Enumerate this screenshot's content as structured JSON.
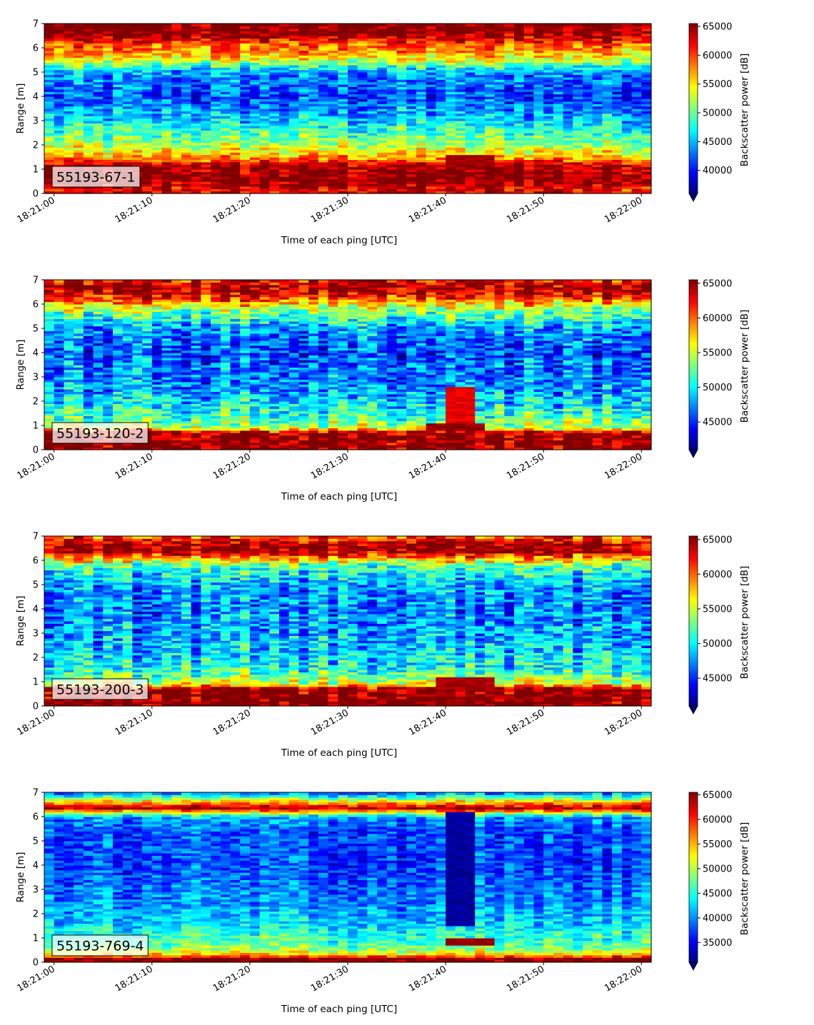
{
  "figure": {
    "colormap": "jet"
  },
  "chart_data": [
    {
      "type": "heatmap",
      "label": "55193-67-1",
      "xlabel": "Time of each ping [UTC]",
      "ylabel": "Range [m]",
      "xticks": [
        "18:21:00",
        "18:21:10",
        "18:21:20",
        "18:21:30",
        "18:21:40",
        "18:21:50",
        "18:22:00"
      ],
      "yticks": [
        0,
        1,
        2,
        3,
        4,
        5,
        6,
        7
      ],
      "xlim": [
        "18:20:59",
        "18:22:00"
      ],
      "ylim": [
        0,
        7
      ],
      "colorbar": {
        "label": "Backscatter power [dB]",
        "ticks": [
          40000,
          45000,
          50000,
          55000,
          60000,
          65000
        ],
        "range": [
          36000,
          65500
        ],
        "extend": "min"
      },
      "profile": [
        {
          "range": 0.2,
          "value": 62000
        },
        {
          "range": 0.5,
          "value": 65500
        },
        {
          "range": 1.1,
          "value": 65000
        },
        {
          "range": 1.5,
          "value": 57000
        },
        {
          "range": 2.0,
          "value": 52000
        },
        {
          "range": 3.0,
          "value": 46000
        },
        {
          "range": 4.0,
          "value": 41500
        },
        {
          "range": 5.0,
          "value": 44000
        },
        {
          "range": 5.6,
          "value": 55000
        },
        {
          "range": 6.2,
          "value": 60000
        },
        {
          "range": 6.6,
          "value": 65500
        },
        {
          "range": 7.0,
          "value": 65500
        }
      ],
      "features": [
        {
          "t0": 40.5,
          "t1": 44.5,
          "r0": 1.1,
          "r1": 1.6,
          "value": 64500
        }
      ]
    },
    {
      "type": "heatmap",
      "label": "55193-120-2",
      "xlabel": "Time of each ping [UTC]",
      "ylabel": "Range [m]",
      "xticks": [
        "18:21:00",
        "18:21:10",
        "18:21:20",
        "18:21:30",
        "18:21:40",
        "18:21:50",
        "18:22:00"
      ],
      "yticks": [
        0,
        1,
        2,
        3,
        4,
        5,
        6,
        7
      ],
      "xlim": [
        "18:20:59",
        "18:22:00"
      ],
      "ylim": [
        0,
        7
      ],
      "colorbar": {
        "label": "Backscatter power [dB]",
        "ticks": [
          45000,
          50000,
          55000,
          60000,
          65000
        ],
        "range": [
          41000,
          65500
        ],
        "extend": "min"
      },
      "profile": [
        {
          "range": 0.2,
          "value": 65500
        },
        {
          "range": 0.7,
          "value": 65500
        },
        {
          "range": 0.9,
          "value": 55000
        },
        {
          "range": 1.5,
          "value": 51000
        },
        {
          "range": 2.5,
          "value": 48000
        },
        {
          "range": 4.0,
          "value": 46000
        },
        {
          "range": 5.0,
          "value": 48000
        },
        {
          "range": 5.8,
          "value": 54000
        },
        {
          "range": 6.3,
          "value": 62000
        },
        {
          "range": 6.7,
          "value": 65500
        },
        {
          "range": 7.0,
          "value": 62000
        }
      ],
      "features": [
        {
          "t0": 38.5,
          "t1": 44.0,
          "r0": 0.8,
          "r1": 1.1,
          "value": 65000
        },
        {
          "t0": 40.5,
          "t1": 42.5,
          "r0": 1.1,
          "r1": 2.6,
          "value": 63000
        }
      ]
    },
    {
      "type": "heatmap",
      "label": "55193-200-3",
      "xlabel": "Time of each ping [UTC]",
      "ylabel": "Range [m]",
      "xticks": [
        "18:21:00",
        "18:21:10",
        "18:21:20",
        "18:21:30",
        "18:21:40",
        "18:21:50",
        "18:22:00"
      ],
      "yticks": [
        0,
        1,
        2,
        3,
        4,
        5,
        6,
        7
      ],
      "xlim": [
        "18:20:59",
        "18:22:00"
      ],
      "ylim": [
        0,
        7
      ],
      "colorbar": {
        "label": "Backscatter power [dB]",
        "ticks": [
          45000,
          50000,
          55000,
          60000,
          65000
        ],
        "range": [
          41000,
          65500
        ],
        "extend": "min"
      },
      "profile": [
        {
          "range": 0.2,
          "value": 65500
        },
        {
          "range": 0.7,
          "value": 65500
        },
        {
          "range": 0.9,
          "value": 56000
        },
        {
          "range": 1.5,
          "value": 50500
        },
        {
          "range": 2.5,
          "value": 48500
        },
        {
          "range": 4.0,
          "value": 47000
        },
        {
          "range": 5.0,
          "value": 48000
        },
        {
          "range": 5.8,
          "value": 52000
        },
        {
          "range": 6.4,
          "value": 65500
        },
        {
          "range": 6.7,
          "value": 64000
        },
        {
          "range": 7.0,
          "value": 60000
        }
      ],
      "features": [
        {
          "t0": 39.5,
          "t1": 44.5,
          "r0": 0.7,
          "r1": 1.2,
          "value": 64500
        }
      ]
    },
    {
      "type": "heatmap",
      "label": "55193-769-4",
      "xlabel": "Time of each ping [UTC]",
      "ylabel": "Range [m]",
      "xticks": [
        "18:21:00",
        "18:21:10",
        "18:21:20",
        "18:21:30",
        "18:21:40",
        "18:21:50",
        "18:22:00"
      ],
      "yticks": [
        0,
        1,
        2,
        3,
        4,
        5,
        6,
        7
      ],
      "xlim": [
        "18:20:59",
        "18:22:00"
      ],
      "ylim": [
        0,
        7
      ],
      "colorbar": {
        "label": "Backscatter power [dB]",
        "ticks": [
          35000,
          40000,
          45000,
          50000,
          55000,
          60000,
          65000
        ],
        "range": [
          31000,
          65500
        ],
        "extend": "min"
      },
      "profile": [
        {
          "range": 0.15,
          "value": 65500
        },
        {
          "range": 0.3,
          "value": 55000
        },
        {
          "range": 0.6,
          "value": 48000
        },
        {
          "range": 1.5,
          "value": 43000
        },
        {
          "range": 2.5,
          "value": 40000
        },
        {
          "range": 4.0,
          "value": 37500
        },
        {
          "range": 5.5,
          "value": 38000
        },
        {
          "range": 6.0,
          "value": 41000
        },
        {
          "range": 6.35,
          "value": 64000
        },
        {
          "range": 6.6,
          "value": 55000
        },
        {
          "range": 7.0,
          "value": 38000
        }
      ],
      "features": [
        {
          "t0": 40.0,
          "t1": 43.0,
          "r0": 1.5,
          "r1": 6.2,
          "value": 32000
        },
        {
          "t0": 40.0,
          "t1": 44.5,
          "r0": 0.75,
          "r1": 0.95,
          "value": 64500
        }
      ]
    }
  ]
}
